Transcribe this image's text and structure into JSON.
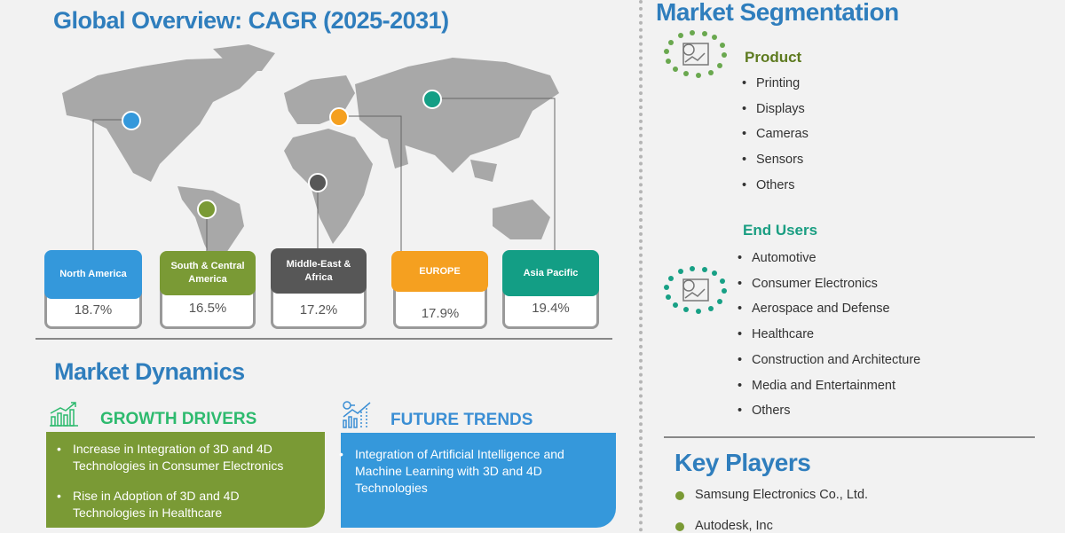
{
  "overview": {
    "title": "Global Overview: CAGR (2025-2031)",
    "regions": [
      {
        "name": "North America",
        "cagr": "18.7%",
        "color": "#3498db"
      },
      {
        "name": "South & Central America",
        "cagr": "16.5%",
        "color": "#7a9a35"
      },
      {
        "name": "Middle-East & Africa",
        "cagr": "17.2%",
        "color": "#575757"
      },
      {
        "name": "EUROPE",
        "cagr": "17.9%",
        "color": "#f5a020"
      },
      {
        "name": "Asia Pacific",
        "cagr": "19.4%",
        "color": "#139e85"
      }
    ]
  },
  "dynamics": {
    "title": "Market Dynamics",
    "growth_drivers": {
      "heading": "GROWTH DRIVERS",
      "items": [
        "Increase in Integration of 3D and 4D Technologies in Consumer Electronics",
        "Rise in Adoption of 3D and 4D Technologies in Healthcare"
      ]
    },
    "future_trends": {
      "heading": "FUTURE TRENDS",
      "items": [
        "Integration of Artificial Intelligence and Machine Learning with 3D and 4D Technologies"
      ]
    }
  },
  "segmentation": {
    "title": "Market Segmentation",
    "product": {
      "heading": "Product",
      "items": [
        "Printing",
        "Displays",
        "Cameras",
        "Sensors",
        "Others"
      ]
    },
    "end_users": {
      "heading": "End Users",
      "items": [
        "Automotive",
        "Consumer Electronics",
        "Aerospace and Defense",
        "Healthcare",
        "Construction and Architecture",
        "Media and Entertainment",
        "Others"
      ]
    }
  },
  "key_players": {
    "title": "Key Players",
    "items": [
      "Samsung Electronics Co., Ltd.",
      "Autodesk, Inc"
    ]
  }
}
